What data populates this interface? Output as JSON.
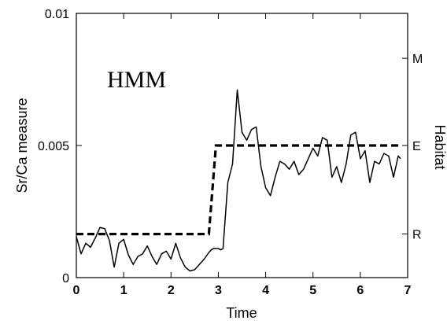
{
  "chart_data": {
    "type": "line",
    "annotation": "HMM",
    "xlabel": "Time",
    "ylabel": "Sr/Ca measure",
    "y2label": "Habitat",
    "xlim": [
      0,
      7
    ],
    "ylim": [
      0,
      0.01
    ],
    "x_ticks": [
      {
        "value": 0,
        "label": "0"
      },
      {
        "value": 1,
        "label": "1"
      },
      {
        "value": 2,
        "label": "2"
      },
      {
        "value": 3,
        "label": "3"
      },
      {
        "value": 4,
        "label": "4"
      },
      {
        "value": 5,
        "label": "5"
      },
      {
        "value": 6,
        "label": "6"
      },
      {
        "value": 7,
        "label": "7"
      }
    ],
    "y_ticks": [
      {
        "value": 0,
        "label": "0"
      },
      {
        "value": 0.005,
        "label": "0.005"
      },
      {
        "value": 0.01,
        "label": "0.01"
      }
    ],
    "y2_ticks": [
      {
        "value": 0.00165,
        "label": "R"
      },
      {
        "value": 0.005,
        "label": "E"
      },
      {
        "value": 0.0083,
        "label": "M"
      }
    ],
    "grid": false,
    "legend": "none",
    "series": [
      {
        "style": "solid",
        "color": "#000000",
        "x": [
          0.0,
          0.1,
          0.2,
          0.3,
          0.4,
          0.5,
          0.6,
          0.7,
          0.8,
          0.9,
          1.0,
          1.1,
          1.2,
          1.3,
          1.4,
          1.5,
          1.6,
          1.7,
          1.8,
          1.9,
          2.0,
          2.1,
          2.2,
          2.3,
          2.4,
          2.5,
          2.6,
          2.7,
          2.8,
          2.85,
          2.9,
          3.0,
          3.05,
          3.1,
          3.2,
          3.3,
          3.4,
          3.5,
          3.6,
          3.7,
          3.8,
          3.9,
          4.0,
          4.1,
          4.2,
          4.3,
          4.4,
          4.5,
          4.6,
          4.7,
          4.8,
          4.9,
          5.0,
          5.1,
          5.2,
          5.3,
          5.4,
          5.5,
          5.6,
          5.7,
          5.8,
          5.9,
          6.0,
          6.1,
          6.2,
          6.3,
          6.4,
          6.5,
          6.6,
          6.7,
          6.8,
          6.85
        ],
        "y": [
          0.00155,
          0.0009,
          0.0013,
          0.00115,
          0.0015,
          0.0019,
          0.00185,
          0.0014,
          0.0004,
          0.0013,
          0.00145,
          0.00085,
          0.0005,
          0.0008,
          0.0009,
          0.0012,
          0.0008,
          0.0005,
          0.0009,
          0.001,
          0.0007,
          0.0013,
          0.00075,
          0.0004,
          0.00025,
          0.0003,
          0.0005,
          0.0007,
          0.00095,
          0.00105,
          0.0011,
          0.0011,
          0.00105,
          0.0011,
          0.0036,
          0.0043,
          0.0071,
          0.0055,
          0.0052,
          0.0056,
          0.0057,
          0.0042,
          0.0034,
          0.0031,
          0.0038,
          0.0044,
          0.0043,
          0.0041,
          0.0044,
          0.0039,
          0.0041,
          0.0045,
          0.0049,
          0.0046,
          0.0053,
          0.0052,
          0.0038,
          0.0042,
          0.0036,
          0.0043,
          0.0054,
          0.0055,
          0.0045,
          0.0048,
          0.0036,
          0.0044,
          0.0043,
          0.0047,
          0.0046,
          0.0038,
          0.0046,
          0.0045
        ]
      },
      {
        "style": "dashed",
        "color": "#000000",
        "x": [
          0.0,
          2.8,
          2.8,
          2.95,
          2.95,
          6.85
        ],
        "y": [
          0.00165,
          0.00165,
          0.00165,
          0.005,
          0.005,
          0.005
        ]
      }
    ]
  }
}
